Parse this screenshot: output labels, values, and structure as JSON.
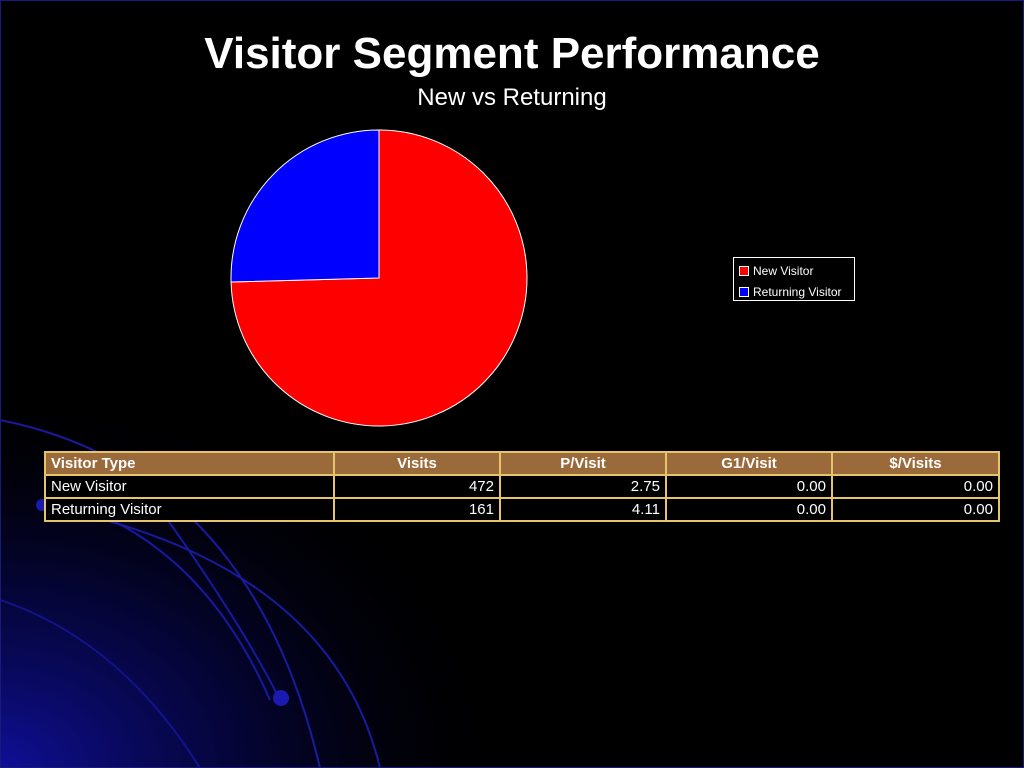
{
  "title": "Visitor Segment Performance",
  "subtitle": "New vs Returning",
  "colors": {
    "new_visitor": "#ff0000",
    "returning_visitor": "#0000ff",
    "header_bg": "#9a6a3a",
    "table_border": "#e6c46a"
  },
  "chart_data": {
    "type": "pie",
    "title": "Visitor Segment Performance",
    "subtitle": "New vs Returning",
    "categories": [
      "New Visitor",
      "Returning Visitor"
    ],
    "values": [
      472,
      161
    ],
    "colors": [
      "#ff0000",
      "#0000ff"
    ],
    "legend_position": "right"
  },
  "legend": {
    "items": [
      "New Visitor",
      "Returning Visitor"
    ]
  },
  "table": {
    "headers": [
      "Visitor Type",
      "Visits",
      "P/Visit",
      "G1/Visit",
      "$/Visits"
    ],
    "rows": [
      [
        "New Visitor",
        "472",
        "2.75",
        "0.00",
        "0.00"
      ],
      [
        "Returning Visitor",
        "161",
        "4.11",
        "0.00",
        "0.00"
      ]
    ]
  }
}
